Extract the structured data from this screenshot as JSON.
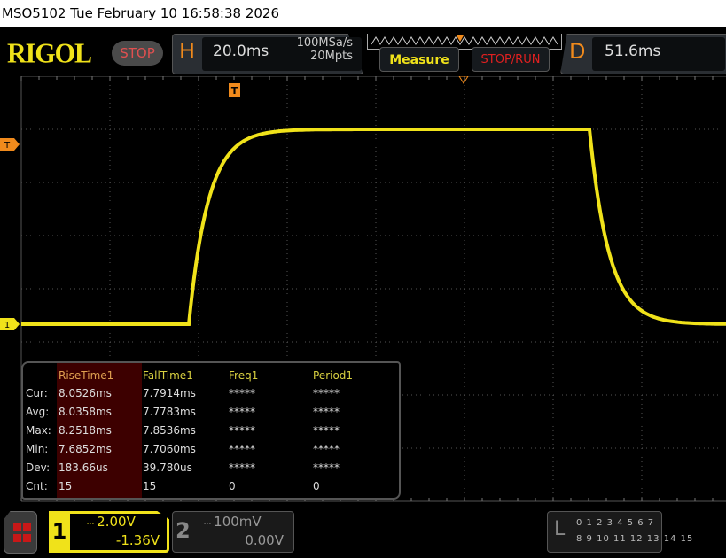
{
  "titlebar": {
    "text": "MSO5102  Tue February 10 16:58:38 2026"
  },
  "header": {
    "logo": "RIGOL",
    "run_state": "STOP",
    "horizontal": {
      "letter": "H",
      "timebase": "20.0ms",
      "sample_rate": "100MSa/s",
      "memory_depth": "20Mpts"
    },
    "measure_label": "Measure",
    "stop_run_label": "STOP/RUN",
    "delay": {
      "letter": "D",
      "value": "51.6ms"
    }
  },
  "colors": {
    "ch1": "#f0e21a",
    "trigger": "#f08a1c",
    "highlight": "#3d0000"
  },
  "markers": {
    "trigger_level": "T",
    "ch1_ground": "1",
    "trigger_pos": "T"
  },
  "measurements": {
    "headers": [
      "RiseTime1",
      "FallTime1",
      "Freq1",
      "Period1"
    ],
    "rows": [
      {
        "label": "Cur:",
        "values": [
          "8.0526ms",
          "7.7914ms",
          "*****",
          "*****"
        ]
      },
      {
        "label": "Avg:",
        "values": [
          "8.0358ms",
          "7.7783ms",
          "*****",
          "*****"
        ]
      },
      {
        "label": "Max:",
        "values": [
          "8.2518ms",
          "7.8536ms",
          "*****",
          "*****"
        ]
      },
      {
        "label": "Min:",
        "values": [
          "7.6852ms",
          "7.7060ms",
          "*****",
          "*****"
        ]
      },
      {
        "label": "Dev:",
        "values": [
          "183.66us",
          "39.780us",
          "*****",
          "*****"
        ]
      },
      {
        "label": "Cnt:",
        "values": [
          "15",
          "15",
          "0",
          "0"
        ]
      }
    ]
  },
  "channels": [
    {
      "num": "1",
      "coupling_icon": "dc-icon",
      "scale": "2.00V",
      "offset": "-1.36V",
      "active": true
    },
    {
      "num": "2",
      "coupling_icon": "dc-icon",
      "scale": "100mV",
      "offset": "0.00V",
      "active": false
    }
  ],
  "logic": {
    "letter": "L",
    "row1": "0 1 2 3  4 5 6 7",
    "row2": "8 9 10 11 12 13 14 15"
  }
}
